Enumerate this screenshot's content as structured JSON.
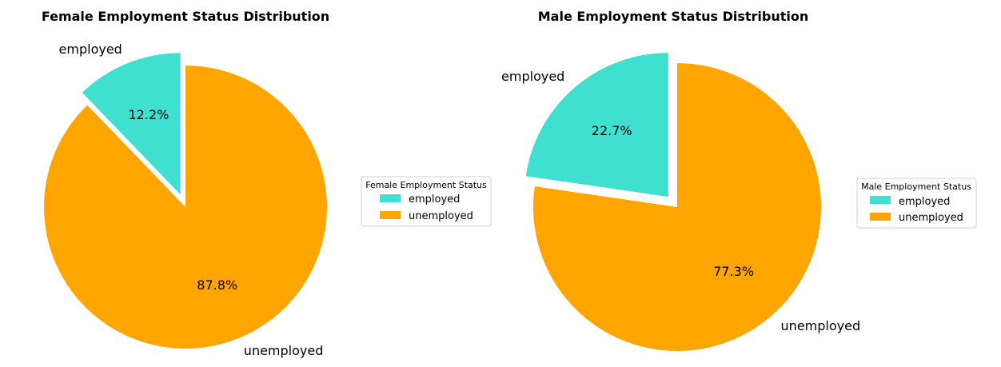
{
  "chart_data": [
    {
      "type": "pie",
      "title": "Female Employment Status Distribution",
      "categories": [
        "employed",
        "unemployed"
      ],
      "values": [
        12.2,
        87.8
      ],
      "value_labels": [
        "12.2%",
        "87.8%"
      ],
      "colors": [
        "#40E0D0",
        "#FFA500"
      ],
      "exploded": [
        "employed"
      ],
      "start_angle_deg": 90,
      "legend": {
        "title": "Female Employment Status",
        "entries": [
          "employed",
          "unemployed"
        ],
        "placement": "right"
      }
    },
    {
      "type": "pie",
      "title": "Male Employment Status Distribution",
      "categories": [
        "employed",
        "unemployed"
      ],
      "values": [
        22.7,
        77.3
      ],
      "value_labels": [
        "22.7%",
        "77.3%"
      ],
      "colors": [
        "#40E0D0",
        "#FFA500"
      ],
      "exploded": [
        "employed"
      ],
      "start_angle_deg": 90,
      "legend": {
        "title": "Male Employment Status",
        "entries": [
          "employed",
          "unemployed"
        ],
        "placement": "right"
      }
    }
  ]
}
